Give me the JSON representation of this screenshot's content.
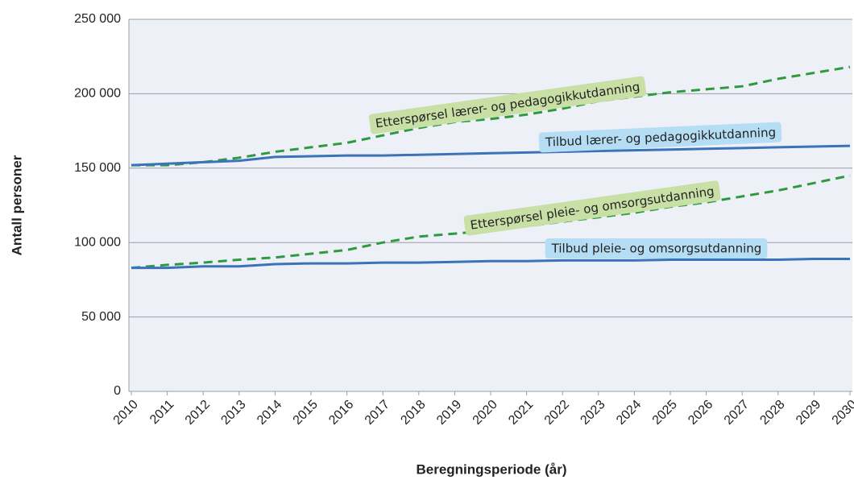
{
  "chart_data": {
    "type": "line",
    "x_label": "Beregningsperiode (år)",
    "y_label": "Antall personer",
    "x": [
      2010,
      2011,
      2012,
      2013,
      2014,
      2015,
      2016,
      2017,
      2018,
      2019,
      2020,
      2021,
      2022,
      2023,
      2024,
      2025,
      2026,
      2027,
      2028,
      2029,
      2030
    ],
    "xlim": [
      2010,
      2030
    ],
    "ylim": [
      0,
      250000
    ],
    "yticks": [
      0,
      {
        "value": 50000,
        "label": "50 000"
      },
      {
        "value": 100000,
        "label": "100 000"
      },
      {
        "value": 150000,
        "label": "150 000"
      },
      {
        "value": 200000,
        "label": "200 000"
      },
      {
        "value": 250000,
        "label": "250 000"
      }
    ],
    "grid": true,
    "series": [
      {
        "name": "Etterspørsel lærer- og pedagogikkutdanning",
        "color": "#2e9a3f",
        "dashed": true,
        "values": [
          152000,
          152000,
          154000,
          157000,
          161000,
          164000,
          167000,
          172000,
          177000,
          181000,
          183000,
          186000,
          190000,
          195000,
          198000,
          201000,
          203000,
          205000,
          210000,
          214000,
          218000
        ]
      },
      {
        "name": "Tilbud lærer- og pedagogikkutdanning",
        "color": "#3b73b9",
        "dashed": false,
        "values": [
          152000,
          153000,
          154000,
          155000,
          157500,
          158000,
          158500,
          158500,
          159000,
          159500,
          160000,
          160500,
          161000,
          161500,
          162000,
          162500,
          163000,
          163500,
          164000,
          164500,
          165000
        ]
      },
      {
        "name": "Etterspørsel pleie- og omsorgsutdanning",
        "color": "#2e9a3f",
        "dashed": true,
        "values": [
          83000,
          85000,
          86500,
          88500,
          90000,
          92500,
          95000,
          100000,
          104000,
          106000,
          108000,
          111000,
          114000,
          117000,
          120000,
          124000,
          127000,
          131000,
          135000,
          140000,
          145000
        ]
      },
      {
        "name": "Tilbud pleie- og omsorgsutdanning",
        "color": "#3b73b9",
        "dashed": false,
        "values": [
          83000,
          83000,
          84000,
          84000,
          85500,
          86000,
          86000,
          86500,
          86500,
          87000,
          87500,
          87500,
          88000,
          88000,
          88000,
          88500,
          88500,
          88500,
          88500,
          89000,
          89000
        ]
      }
    ]
  }
}
